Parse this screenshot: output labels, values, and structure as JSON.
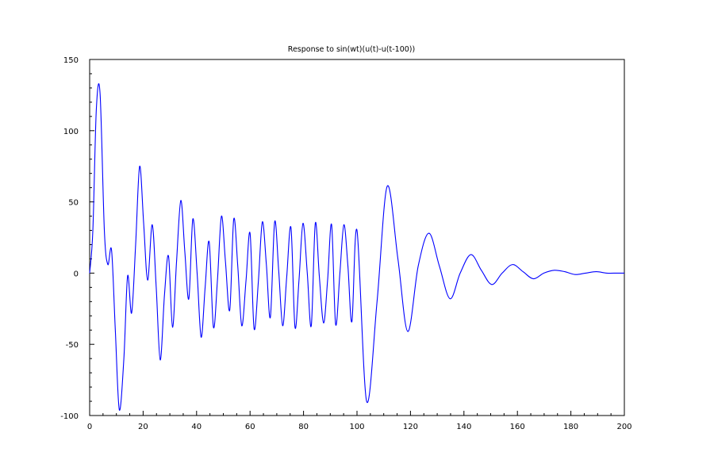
{
  "chart_data": {
    "type": "line",
    "title": "Response to sin(wt)(u(t)-u(t-100))",
    "xlabel": "",
    "ylabel": "",
    "xlim": [
      0,
      200
    ],
    "ylim": [
      -100,
      150
    ],
    "x_ticks": [
      0,
      20,
      40,
      60,
      80,
      100,
      120,
      140,
      160,
      180,
      200
    ],
    "y_ticks": [
      -100,
      -50,
      0,
      50,
      100,
      150
    ],
    "grid": false,
    "legend": "none",
    "line_color": "#0000ff",
    "series": [
      {
        "x": [
          0,
          1.2,
          2.5,
          3.9,
          5.5,
          6.8,
          8.2,
          9.6,
          11.1,
          12.8,
          14.2,
          15.7,
          17.2,
          18.7,
          20.2,
          21.7,
          23.4,
          24.9,
          26.4,
          28.0,
          29.5,
          31.0,
          32.5,
          34.1,
          35.6,
          37.1,
          38.6,
          40.2,
          41.7,
          43.2,
          44.7,
          46.3,
          47.8,
          49.3,
          50.8,
          52.4,
          53.9,
          55.4,
          56.9,
          58.5,
          60.0,
          61.5,
          63.1,
          64.6,
          66.1,
          67.6,
          69.2,
          70.7,
          72.2,
          73.7,
          75.3,
          76.8,
          78.3,
          79.8,
          81.4,
          82.9,
          84.4,
          85.9,
          87.5,
          89.0,
          90.5,
          92.0,
          93.6,
          95.1,
          96.6,
          98.1,
          100.0,
          103.6,
          107.5,
          111.3,
          115.3,
          119.0,
          122.9,
          126.9,
          130.8,
          134.8,
          138.6,
          142.6,
          146.5,
          150.4,
          154.3,
          158.2,
          162.1,
          166.0,
          169.9,
          173.8,
          177.7,
          181.6,
          185.5,
          189.5,
          193.4,
          197.2,
          200.0
        ],
        "y": [
          0,
          30,
          115,
          126,
          30,
          6,
          16,
          -40,
          -96,
          -60,
          -2,
          -28,
          20,
          75,
          35,
          -5,
          34,
          -10,
          -61,
          -15,
          12,
          -38,
          8,
          51,
          15,
          -18,
          38,
          0,
          -45,
          -10,
          22,
          -38,
          -5,
          40,
          8,
          -26,
          38,
          5,
          -37,
          -5,
          28,
          -39,
          -6,
          36,
          6,
          -31,
          36,
          2,
          -37,
          -3,
          32,
          -38,
          -5,
          35,
          0,
          -37,
          35,
          -2,
          -35,
          -5,
          34,
          -36,
          0,
          34,
          5,
          -34,
          30,
          -90,
          -20,
          61,
          10,
          -41,
          5,
          28,
          5,
          -18,
          0,
          13,
          2,
          -8,
          0,
          6,
          1,
          -4,
          0,
          2,
          1,
          -1,
          0,
          1,
          0,
          0,
          0
        ]
      }
    ]
  }
}
